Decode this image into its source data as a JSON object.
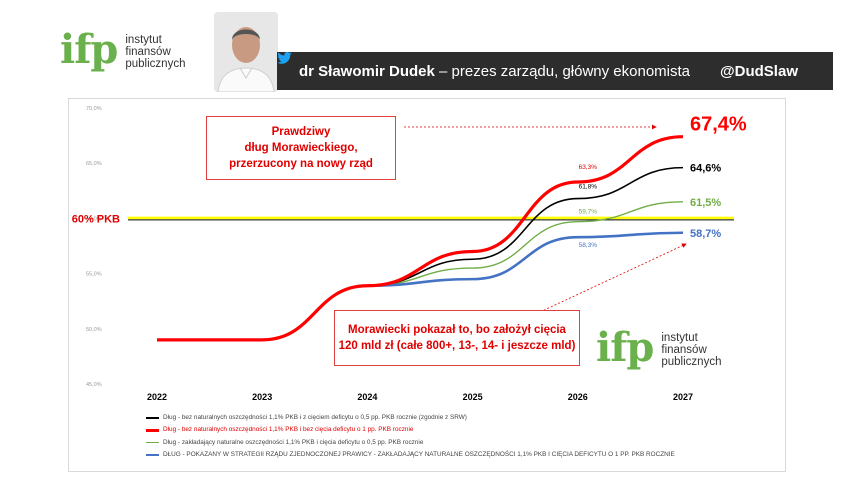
{
  "header": {
    "logo_mark": "ifp",
    "logo_lines": [
      "instytut",
      "finansów",
      "publicznych"
    ],
    "author_name": "dr Sławomir Dudek",
    "author_role": " – prezes zarządu, główny ekonomista",
    "twitter_handle": "@DudSlaw"
  },
  "annotations": {
    "box1_lines": [
      "Prawdziwy",
      "dług Morawieckiego,",
      "przerzucony na nowy rząd"
    ],
    "box2_lines": [
      "Morawiecki pokazał to, bo założył cięcia",
      "120 mld zł (całe 800+, 13-, 14- i jeszcze mld)"
    ],
    "threshold_label": "60% PKB",
    "end_labels": [
      "67,4%",
      "64,6%",
      "61,5%",
      "58,7%"
    ],
    "mid_labels": [
      "63,3%",
      "61,8%",
      "59,7%",
      "58,3%"
    ]
  },
  "bottom_logo": {
    "mark": "ifp",
    "lines": [
      "instytut",
      "finansów",
      "publicznych"
    ]
  },
  "chart_data": {
    "type": "line",
    "x": [
      2022,
      2023,
      2024,
      2025,
      2026,
      2027
    ],
    "xtick_labels": [
      "2022",
      "2023",
      "2024",
      "2025",
      "2026",
      "2027"
    ],
    "ytick_labels": [
      "45,0%",
      "50,0%",
      "55,0%",
      "60,0%",
      "65,0%",
      "70,0%"
    ],
    "ylim": [
      45,
      70
    ],
    "threshold": 60,
    "series": [
      {
        "name": "Dług - bez naturalnych oszczędności 1,1% PKB i z cięciem deficytu o 0,5 pp. PKB rocznie (zgodnie z SRW)",
        "color": "#000000",
        "values": [
          49.0,
          49.0,
          53.9,
          56.3,
          61.8,
          64.6
        ]
      },
      {
        "name": "Dług - bez naturalnych oszczędności 1,1% PKB i bez cięcia deficytu o 1 pp. PKB rocznie",
        "color": "#ff0000",
        "values": [
          49.0,
          49.0,
          53.9,
          57.0,
          63.3,
          67.4
        ]
      },
      {
        "name": "Dług - zakładający naturalne oszczędności 1,1% PKB i cięcia deficytu o 0,5 pp. PKB rocznie",
        "color": "#70ad47",
        "values": [
          49.0,
          49.0,
          53.9,
          55.5,
          59.7,
          61.5
        ]
      },
      {
        "name": "DŁUG - POKAZANY W STRATEGII RZĄDU ZJEDNOCZONEJ PRAWICY - ZAKŁADAJĄCY NATURALNE OSZCZĘDNOŚCI 1,1% PKB I CIĘCIA DEFICYTU O 1 PP. PKB ROCZNIE",
        "color": "#4472c4",
        "values": [
          49.0,
          49.0,
          53.9,
          54.5,
          58.3,
          58.7
        ]
      }
    ]
  }
}
